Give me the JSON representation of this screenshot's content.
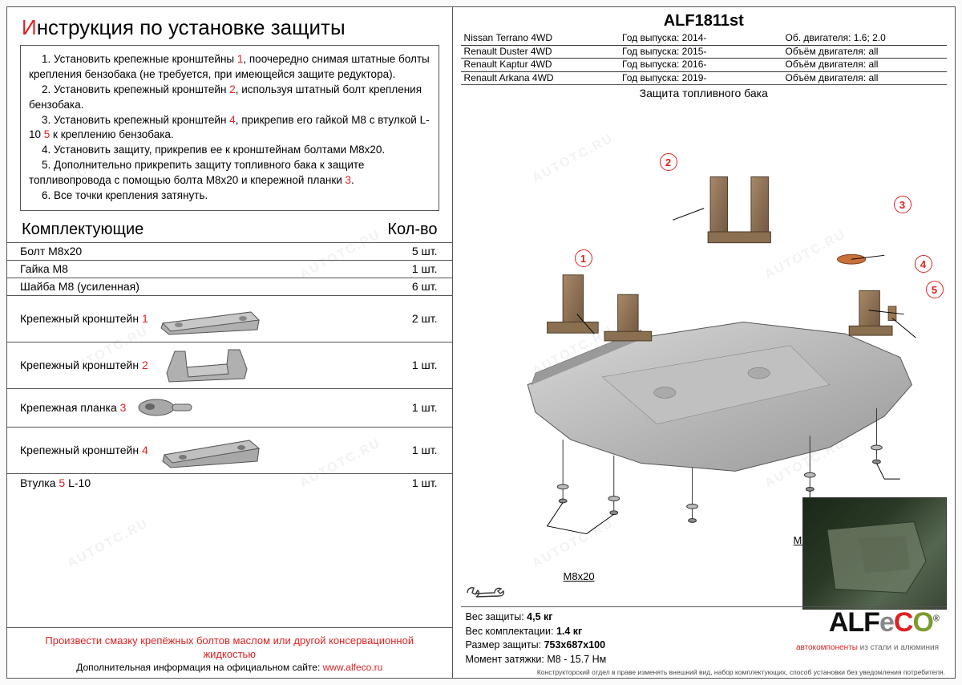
{
  "title_first_letter": "И",
  "title_rest": "нструкция по установке защиты",
  "instructions": [
    {
      "pre": "1. Установить крепежные кронштейны ",
      "red": "1",
      "post": ", поочередно снимая штатные болты крепления бензобака (не требуется, при имеющейся защите редуктора)."
    },
    {
      "pre": "2. Установить крепежный кронштейн ",
      "red": "2",
      "post": ", используя штатный болт крепления бензобака."
    },
    {
      "pre": "3. Установить крепежный кронштейн ",
      "red": "4",
      "post": ", прикрепив его гайкой М8 с втулкой L-10 ",
      "red2": "5",
      "post2": " к креплению бензобака."
    },
    {
      "pre": "4. Установить защиту, прикрепив ее к кронштейнам болтами М8х20.",
      "red": "",
      "post": ""
    },
    {
      "pre": "5. Дополнительно прикрепить защиту топливного бака к защите топливопровода с помощью болта М8х20 и кпережной планки ",
      "red": "3",
      "post": "."
    },
    {
      "pre": "6. Все точки крепления затянуть.",
      "red": "",
      "post": ""
    }
  ],
  "parts_header_name": "Комплектующие",
  "parts_header_qty": "Кол-во",
  "parts": [
    {
      "name": "Болт М8х20",
      "red": "",
      "qty": "5 шт.",
      "cls": ""
    },
    {
      "name": "Гайка М8",
      "red": "",
      "qty": "1 шт.",
      "cls": ""
    },
    {
      "name": "Шайба М8 (усиленная)",
      "red": "",
      "qty": "6 шт.",
      "cls": ""
    },
    {
      "name": "Крепежный кронштейн ",
      "red": "1",
      "qty": "2 шт.",
      "cls": "tall",
      "img": "bracket1"
    },
    {
      "name": "Крепежный кронштейн ",
      "red": "2",
      "qty": "1 шт.",
      "cls": "tall",
      "img": "bracket2"
    },
    {
      "name": "Крепежная планка ",
      "red": "3",
      "qty": "1 шт.",
      "cls": "med",
      "img": "plank"
    },
    {
      "name": "Крепежный кронштейн ",
      "red": "4",
      "qty": "1 шт.",
      "cls": "tall",
      "img": "bracket3"
    },
    {
      "name": "Втулка ",
      "red": "5",
      "post": " L-10",
      "qty": "1 шт.",
      "cls": ""
    }
  ],
  "warn_text": "Произвести смазку крепёжных болтов маслом или другой консервационной жидкостью",
  "info_text": "Дополнительная информация на официальном сайте: ",
  "site": "www.alfeco.ru",
  "part_number": "ALF1811st",
  "specs": [
    {
      "c1": "Nissan Terrano 4WD",
      "c2": "Год выпуска: 2014-",
      "c3": "Об. двигателя: 1.6; 2.0"
    },
    {
      "c1": "Renault Duster 4WD",
      "c2": "Год выпуска: 2015-",
      "c3": "Объём двигателя: all"
    },
    {
      "c1": "Renault Kaptur 4WD",
      "c2": "Год выпуска: 2016-",
      "c3": "Объём двигателя: all"
    },
    {
      "c1": "Renault Arkana 4WD",
      "c2": "Год выпуска: 2019-",
      "c3": "Объём двигателя: all"
    }
  ],
  "diagram_title": "Защита топливного бака",
  "diagram_labels": {
    "m8": "M8",
    "m8x20_1": "M8x20",
    "m8x20_2": "M8x20"
  },
  "callouts": [
    "1",
    "2",
    "3",
    "4",
    "5"
  ],
  "bottom_info": {
    "weight_protection": "Вес защиты: ",
    "weight_protection_val": "4,5 кг",
    "weight_kit": "Вес комплектации: ",
    "weight_kit_val": "1.4 кг",
    "size": "Размер защиты: ",
    "size_val": "753х687х100",
    "torque": "Момент затяжки: ",
    "torque_val": "М8 - 15.7 Нм"
  },
  "logo": {
    "a": "ALF",
    "e": "e",
    "c": "C",
    "o": "O"
  },
  "logo_sub1": "автокомпоненты",
  "logo_sub2": " из стали и алюминия",
  "fine_print": "Конструкторский отдел в праве изменять внешний вид, набор комплектующих, способ установки без уведомления потребителя.",
  "watermark": "AUTOTC.RU",
  "colors": {
    "accent_red": "#d22",
    "metal_light": "#c8c8c8",
    "metal_dark": "#888",
    "bracket": "#8a7050"
  }
}
